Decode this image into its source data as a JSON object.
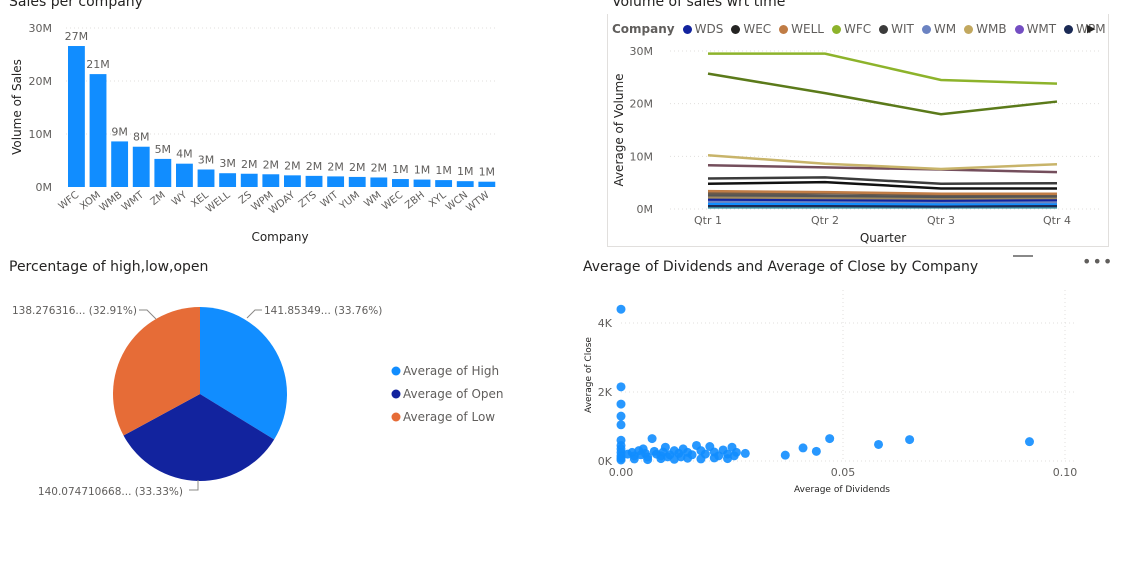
{
  "chart_data": [
    {
      "type": "bar",
      "title": "Sales per company",
      "xlabel": "Company",
      "ylabel": "Volume of Sales",
      "yticks": [
        "0M",
        "10M",
        "20M",
        "30M"
      ],
      "ylim": [
        0,
        30
      ],
      "categories": [
        "WFC",
        "XOM",
        "WMB",
        "WMT",
        "ZM",
        "WY",
        "XEL",
        "WELL",
        "ZS",
        "WPM",
        "WDAY",
        "ZTS",
        "WIT",
        "YUM",
        "WM",
        "WEC",
        "ZBH",
        "XYL",
        "WCN",
        "WTW"
      ],
      "values": [
        26.6,
        21.3,
        8.6,
        7.6,
        5.3,
        4.4,
        3.3,
        2.6,
        2.5,
        2.4,
        2.2,
        2.1,
        2.0,
        1.9,
        1.8,
        1.5,
        1.4,
        1.3,
        1.1,
        1.0
      ],
      "data_labels": [
        "27M",
        "21M",
        "9M",
        "8M",
        "5M",
        "4M",
        "3M",
        "3M",
        "2M",
        "2M",
        "2M",
        "2M",
        "2M",
        "2M",
        "2M",
        "1M",
        "1M",
        "1M",
        "1M",
        "1M"
      ],
      "color": "#118DFF"
    },
    {
      "type": "line",
      "title": "Volume of sales wrt time",
      "xlabel": "Quarter",
      "ylabel": "Average of Volume",
      "legend_title": "Company",
      "legend_items": [
        {
          "name": "WDS",
          "color": "#12239E"
        },
        {
          "name": "WEC",
          "color": "#252423"
        },
        {
          "name": "WELL",
          "color": "#C07C45"
        },
        {
          "name": "WFC",
          "color": "#8DB32B"
        },
        {
          "name": "WIT",
          "color": "#3B3B3B"
        },
        {
          "name": "WM",
          "color": "#6B83C2"
        },
        {
          "name": "WMB",
          "color": "#C2A85F"
        },
        {
          "name": "WMT",
          "color": "#744EC2"
        },
        {
          "name": "WPM",
          "color": "#1B2A55"
        }
      ],
      "categories": [
        "Qtr 1",
        "Qtr 2",
        "Qtr 3",
        "Qtr 4"
      ],
      "yticks": [
        "0M",
        "10M",
        "20M",
        "30M"
      ],
      "ylim": [
        0,
        30
      ],
      "series": [
        {
          "color": "#8DB32B",
          "values": [
            29.5,
            29.5,
            24.5,
            23.8
          ]
        },
        {
          "color": "#5B7A1A",
          "values": [
            25.7,
            22,
            18,
            20.4
          ]
        },
        {
          "color": "#C8B46A",
          "values": [
            10.2,
            8.6,
            7.6,
            8.5
          ]
        },
        {
          "color": "#744E5C",
          "values": [
            8.3,
            7.9,
            7.5,
            7
          ]
        },
        {
          "color": "#3B3B3B",
          "values": [
            5.8,
            6,
            4.8,
            4.9
          ]
        },
        {
          "color": "#111111",
          "values": [
            4.8,
            5.1,
            3.9,
            3.9
          ]
        },
        {
          "color": "#C07C45",
          "values": [
            3.4,
            3.2,
            2.9,
            2.9
          ]
        },
        {
          "color": "#6B5A4A",
          "values": [
            3,
            3,
            2.7,
            2.8
          ]
        },
        {
          "color": "#555555",
          "values": [
            2.6,
            2.5,
            2.3,
            2.4
          ]
        },
        {
          "color": "#A08A60",
          "values": [
            2.2,
            2.1,
            2,
            2.1
          ]
        },
        {
          "color": "#12239E",
          "values": [
            1.8,
            1.7,
            1.6,
            1.7
          ]
        },
        {
          "color": "#6B83C2",
          "values": [
            1.4,
            1.4,
            1.3,
            1.3
          ]
        },
        {
          "color": "#118DFF",
          "values": [
            1,
            1,
            0.9,
            1
          ]
        },
        {
          "color": "#1B2A55",
          "values": [
            0.6,
            0.6,
            0.5,
            0.6
          ]
        },
        {
          "color": "#3A8FA0",
          "values": [
            0.3,
            0.3,
            0.3,
            0.3
          ]
        }
      ]
    },
    {
      "type": "pie",
      "title": "Percentage of high,low,open",
      "slices": [
        {
          "name": "Average of High",
          "value": 141.85349,
          "label": "141.85349... (33.76%)",
          "color": "#118DFF"
        },
        {
          "name": "Average of Open",
          "value": 140.074710668,
          "label": "140.074710668... (33.33%)",
          "color": "#12239E"
        },
        {
          "name": "Average of Low",
          "value": 138.276316,
          "label": "138.276316... (32.91%)",
          "color": "#E66C37"
        }
      ]
    },
    {
      "type": "scatter",
      "title": "Average of Dividends and Average of Close by Company",
      "xlabel": "Average of Dividends",
      "ylabel": "Average of Close",
      "xticks": [
        "0.00",
        "0.05",
        "0.10"
      ],
      "yticks": [
        "0K",
        "2K",
        "4K"
      ],
      "xlim": [
        0,
        0.1
      ],
      "ylim": [
        0,
        4000
      ],
      "color": "#118DFF",
      "points": [
        [
          0,
          4400
        ],
        [
          0,
          2150
        ],
        [
          0,
          1650
        ],
        [
          0,
          1300
        ],
        [
          0,
          1050
        ],
        [
          0,
          600
        ],
        [
          0,
          450
        ],
        [
          0,
          350
        ],
        [
          0,
          250
        ],
        [
          0,
          150
        ],
        [
          0,
          80
        ],
        [
          0,
          30
        ],
        [
          0.0015,
          200
        ],
        [
          0.0025,
          250
        ],
        [
          0.003,
          150
        ],
        [
          0.004,
          300
        ],
        [
          0.0045,
          180
        ],
        [
          0.0055,
          220
        ],
        [
          0.006,
          120
        ],
        [
          0.007,
          650
        ],
        [
          0.0075,
          280
        ],
        [
          0.008,
          200
        ],
        [
          0.009,
          150
        ],
        [
          0.0095,
          260
        ],
        [
          0.01,
          400
        ],
        [
          0.011,
          180
        ],
        [
          0.012,
          300
        ],
        [
          0.013,
          220
        ],
        [
          0.0135,
          120
        ],
        [
          0.014,
          350
        ],
        [
          0.015,
          250
        ],
        [
          0.016,
          180
        ],
        [
          0.017,
          450
        ],
        [
          0.018,
          300
        ],
        [
          0.019,
          200
        ],
        [
          0.02,
          420
        ],
        [
          0.021,
          260
        ],
        [
          0.022,
          150
        ],
        [
          0.023,
          320
        ],
        [
          0.024,
          200
        ],
        [
          0.025,
          400
        ],
        [
          0.026,
          250
        ],
        [
          0.0255,
          150
        ],
        [
          0.028,
          220
        ],
        [
          0.037,
          170
        ],
        [
          0.041,
          380
        ],
        [
          0.044,
          280
        ],
        [
          0.047,
          650
        ],
        [
          0.058,
          480
        ],
        [
          0.065,
          620
        ],
        [
          0.092,
          560
        ],
        [
          0.003,
          60
        ],
        [
          0.006,
          40
        ],
        [
          0.009,
          70
        ],
        [
          0.012,
          50
        ],
        [
          0.015,
          80
        ],
        [
          0.018,
          60
        ],
        [
          0.021,
          90
        ],
        [
          0.024,
          70
        ],
        [
          0.005,
          350
        ],
        [
          0.0105,
          120
        ]
      ]
    }
  ]
}
